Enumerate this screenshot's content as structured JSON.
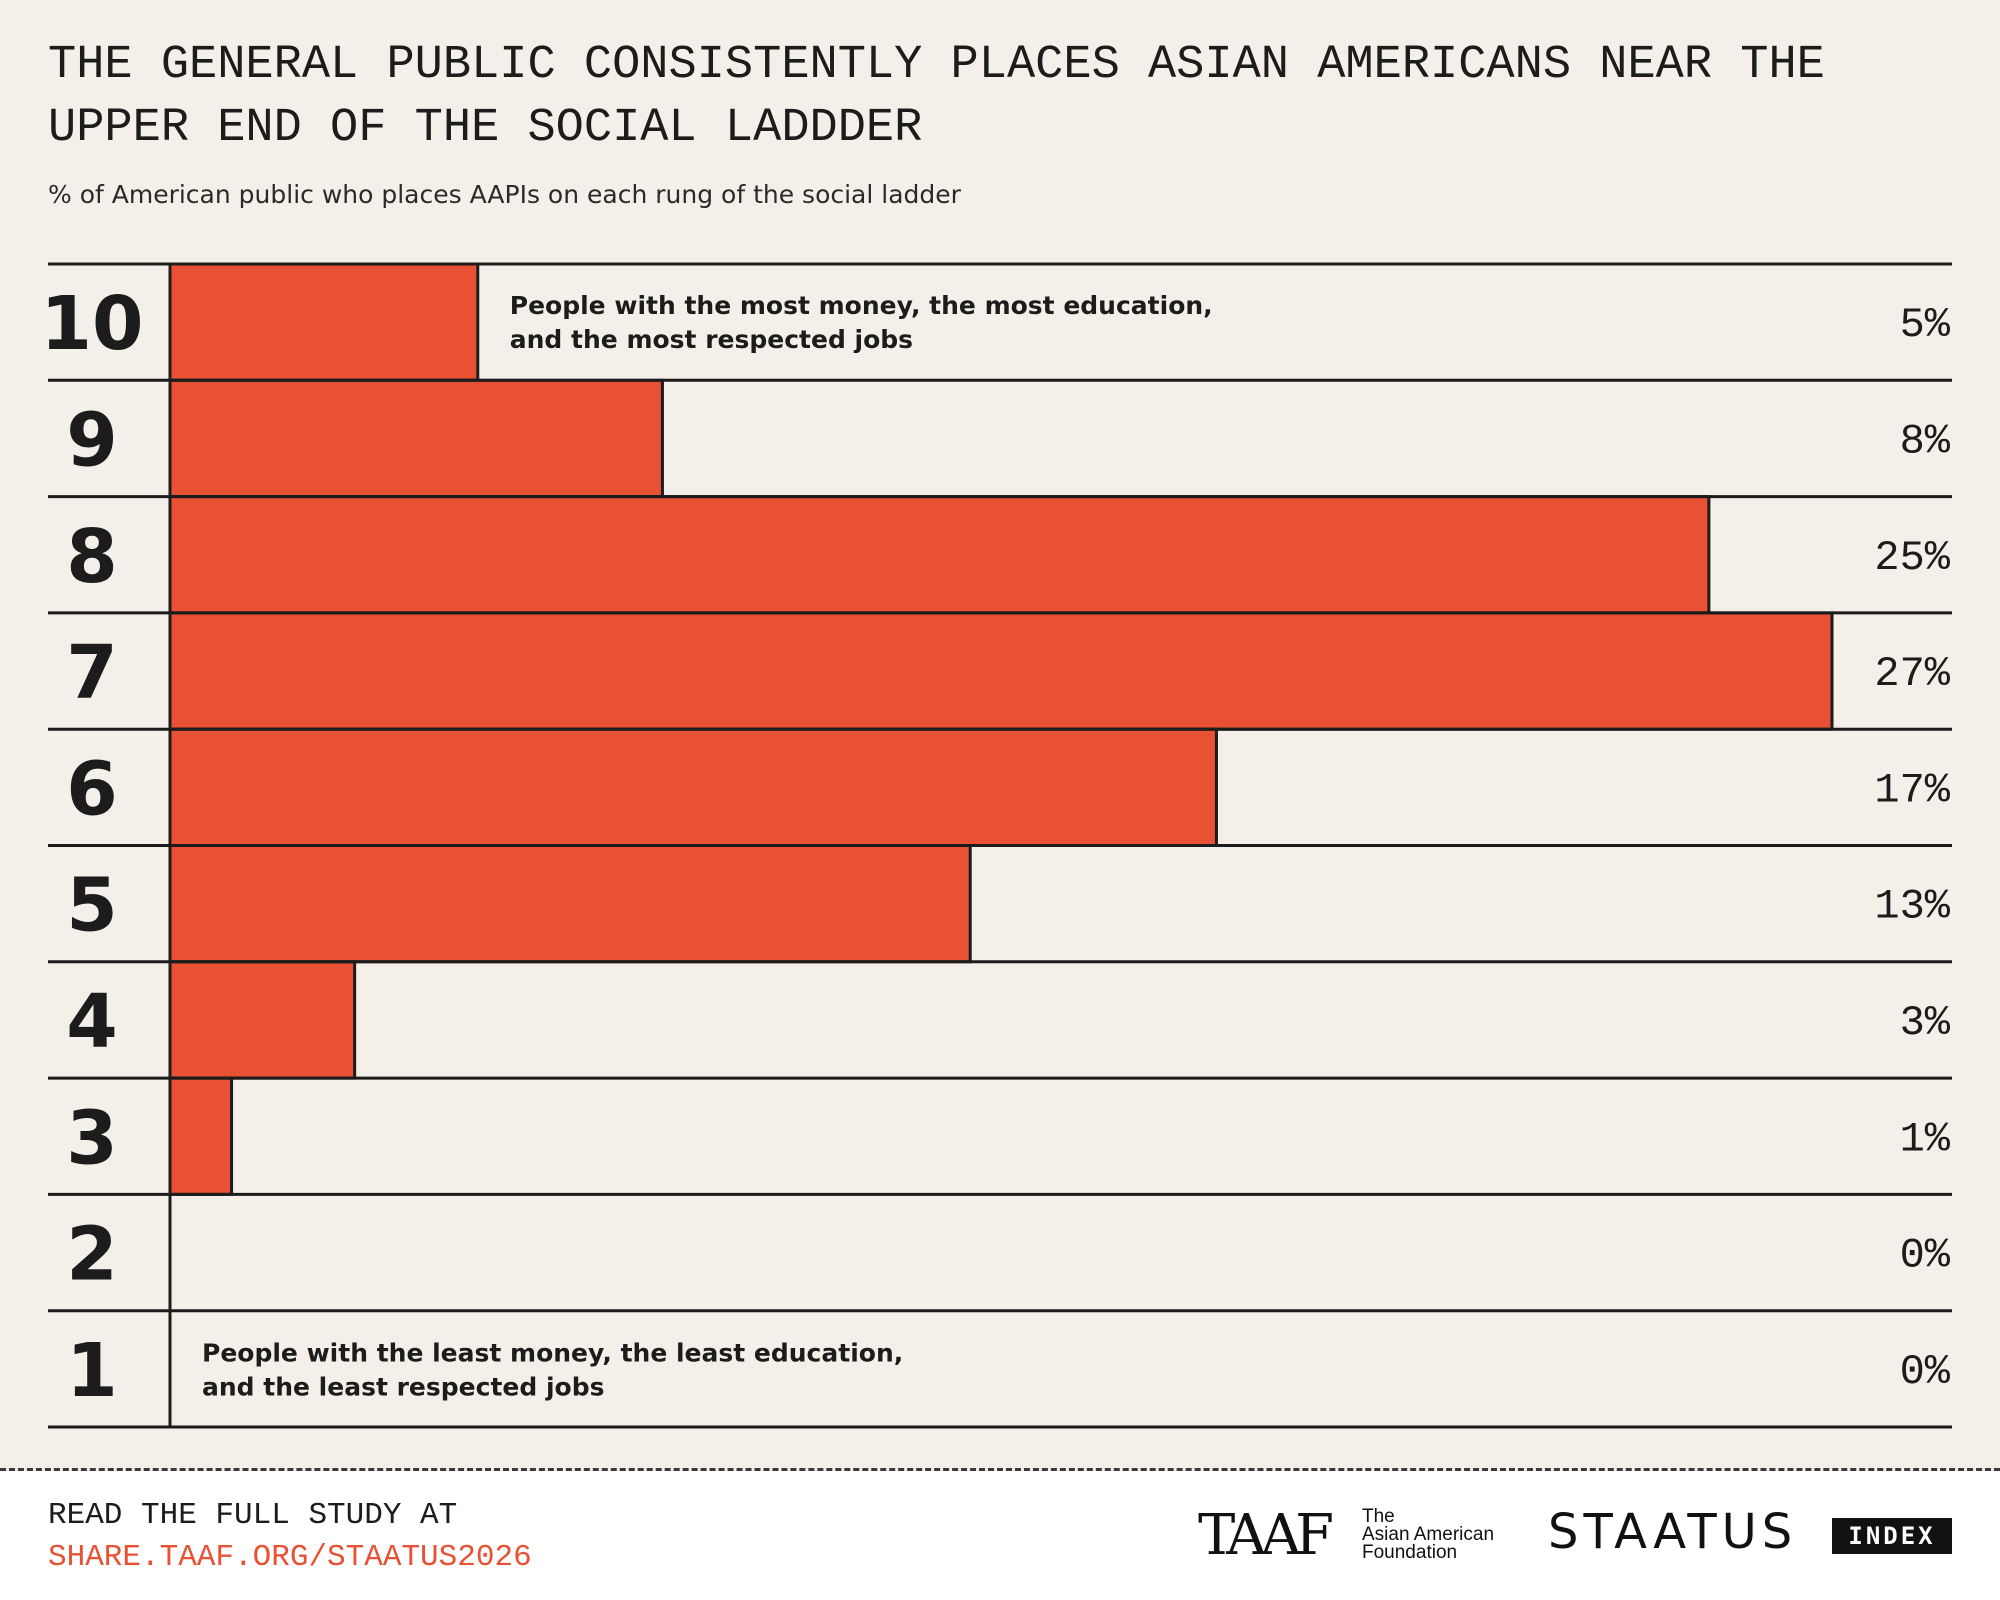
{
  "header": {
    "title": "THE GENERAL PUBLIC CONSISTENTLY PLACES ASIAN AMERICANS NEAR THE UPPER END OF THE SOCIAL LADDDER",
    "subtitle": "% of American public who places AAPIs on each rung of the social ladder"
  },
  "chart_data": {
    "type": "bar",
    "orientation": "horizontal",
    "categories": [
      "10",
      "9",
      "8",
      "7",
      "6",
      "5",
      "4",
      "3",
      "2",
      "1"
    ],
    "values": [
      5,
      8,
      25,
      27,
      17,
      13,
      3,
      1,
      0,
      0
    ],
    "value_labels": [
      "5%",
      "8%",
      "25%",
      "27%",
      "17%",
      "13%",
      "3%",
      "1%",
      "0%",
      "0%"
    ],
    "xlim": [
      0,
      27
    ],
    "annotations": {
      "top": [
        "People with the most money, the most education,",
        "and the most respected jobs"
      ],
      "bottom": [
        "People with the least money, the least education,",
        "and the least respected jobs"
      ]
    },
    "bar_color": "#e85133"
  },
  "footer": {
    "cta_line1": "READ THE FULL STUDY AT",
    "cta_line2": "SHARE.TAAF.ORG/STAATUS2026",
    "taaf_logo": "TAAF",
    "taaf_name_line1": "The",
    "taaf_name_line2": "Asian American",
    "taaf_name_line3": "Foundation",
    "staatus": "STAATUS",
    "index_badge": "INDEX"
  }
}
